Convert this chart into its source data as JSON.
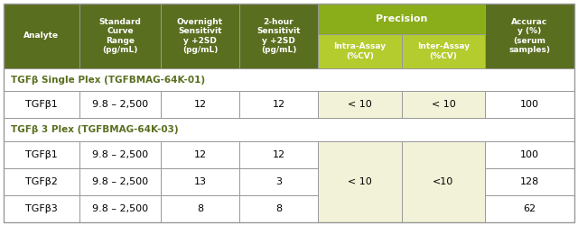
{
  "dark_green": "#5a6e1f",
  "light_green": "#8aad1a",
  "yellow_green": "#b5cc2e",
  "pale_yellow": "#f2f2d8",
  "white": "#ffffff",
  "border_color": "#999999",
  "header_texts": [
    "Analyte",
    "Standard\nCurve\nRange\n(pg/mL)",
    "Overnight\nSensitivit\ny +2SD\n(pg/mL)",
    "2-hour\nSensitivit\ny +2SD\n(pg/mL)",
    "Precision",
    "Intra-Assay\n(%CV)",
    "Inter-Assay\n(%CV)",
    "Accurac\ny (%)\n(serum\nsamples)"
  ],
  "section1": "TGFβ Single Plex (TGFBMAG-64K-01)",
  "section2": "TGFβ 3 Plex (TGFBMAG-64K-03)",
  "figsize": [
    6.4,
    2.6
  ],
  "dpi": 100
}
